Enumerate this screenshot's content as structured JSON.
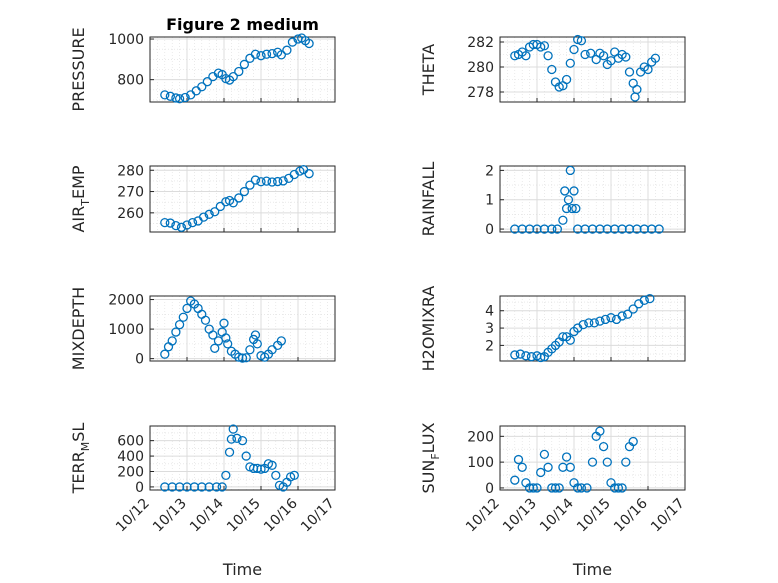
{
  "chart_data": [
    {
      "id": "pressure",
      "type": "scatter",
      "title": "Figure 2 medium",
      "ylabel": "PRESSURE",
      "xlabel": "",
      "ylim": [
        690,
        1010
      ],
      "yticks": [
        800,
        1000
      ],
      "yminor": [
        700,
        750,
        850,
        900,
        950
      ],
      "xlim": [
        0,
        5
      ],
      "xtick_labels": [],
      "grid": "on",
      "points": [
        [
          0.4,
          725
        ],
        [
          0.55,
          718
        ],
        [
          0.7,
          710
        ],
        [
          0.8,
          706
        ],
        [
          0.95,
          712
        ],
        [
          1.1,
          725
        ],
        [
          1.25,
          745
        ],
        [
          1.4,
          765
        ],
        [
          1.55,
          790
        ],
        [
          1.7,
          815
        ],
        [
          1.85,
          832
        ],
        [
          1.95,
          825
        ],
        [
          2.05,
          805
        ],
        [
          2.15,
          798
        ],
        [
          2.25,
          815
        ],
        [
          2.4,
          840
        ],
        [
          2.55,
          875
        ],
        [
          2.7,
          905
        ],
        [
          2.85,
          925
        ],
        [
          3.0,
          918
        ],
        [
          3.15,
          925
        ],
        [
          3.3,
          928
        ],
        [
          3.45,
          935
        ],
        [
          3.55,
          922
        ],
        [
          3.7,
          945
        ],
        [
          3.85,
          985
        ],
        [
          4.0,
          1000
        ],
        [
          4.1,
          1005
        ],
        [
          4.2,
          992
        ],
        [
          4.3,
          978
        ]
      ]
    },
    {
      "id": "theta",
      "type": "scatter",
      "ylabel": "THETA",
      "xlabel": "",
      "ylim": [
        277.2,
        282.4
      ],
      "yticks": [
        278,
        280,
        282
      ],
      "yminor": [
        279,
        281
      ],
      "xlim": [
        0,
        5
      ],
      "xtick_labels": [],
      "grid": "on",
      "points": [
        [
          0.4,
          280.9
        ],
        [
          0.5,
          281.0
        ],
        [
          0.6,
          281.2
        ],
        [
          0.7,
          280.9
        ],
        [
          0.8,
          281.6
        ],
        [
          0.9,
          281.8
        ],
        [
          1.0,
          281.8
        ],
        [
          1.1,
          281.6
        ],
        [
          1.2,
          281.7
        ],
        [
          1.3,
          280.9
        ],
        [
          1.4,
          279.8
        ],
        [
          1.5,
          278.8
        ],
        [
          1.6,
          278.4
        ],
        [
          1.7,
          278.5
        ],
        [
          1.8,
          279.0
        ],
        [
          1.9,
          280.3
        ],
        [
          2.0,
          281.4
        ],
        [
          2.1,
          282.2
        ],
        [
          2.2,
          282.1
        ],
        [
          2.3,
          281.0
        ],
        [
          2.45,
          281.1
        ],
        [
          2.6,
          280.6
        ],
        [
          2.7,
          281.1
        ],
        [
          2.8,
          280.9
        ],
        [
          2.9,
          280.2
        ],
        [
          3.0,
          280.5
        ],
        [
          3.1,
          281.2
        ],
        [
          3.2,
          280.7
        ],
        [
          3.3,
          281.0
        ],
        [
          3.4,
          280.8
        ],
        [
          3.5,
          279.6
        ],
        [
          3.6,
          278.7
        ],
        [
          3.65,
          277.6
        ],
        [
          3.7,
          278.2
        ],
        [
          3.8,
          279.6
        ],
        [
          3.9,
          280.0
        ],
        [
          4.0,
          279.8
        ],
        [
          4.1,
          280.4
        ],
        [
          4.2,
          280.7
        ]
      ]
    },
    {
      "id": "air-temp",
      "type": "scatter",
      "ylabel": "AIR",
      "ylabel_sub": "T",
      "ylabel_tail": "EMP",
      "xlabel": "",
      "ylim": [
        251,
        282
      ],
      "yticks": [
        260,
        270,
        280
      ],
      "yminor": [
        255,
        265,
        275
      ],
      "xlim": [
        0,
        5
      ],
      "xtick_labels": [],
      "grid": "on",
      "points": [
        [
          0.4,
          255.4
        ],
        [
          0.55,
          255.2
        ],
        [
          0.7,
          254.0
        ],
        [
          0.85,
          253.2
        ],
        [
          1.0,
          254.3
        ],
        [
          1.15,
          255.4
        ],
        [
          1.3,
          256.2
        ],
        [
          1.45,
          258.0
        ],
        [
          1.6,
          259.3
        ],
        [
          1.75,
          260.5
        ],
        [
          1.9,
          263.0
        ],
        [
          2.05,
          265.2
        ],
        [
          2.15,
          265.8
        ],
        [
          2.25,
          264.7
        ],
        [
          2.4,
          267.0
        ],
        [
          2.55,
          270.0
        ],
        [
          2.7,
          273.0
        ],
        [
          2.85,
          275.4
        ],
        [
          3.0,
          274.6
        ],
        [
          3.15,
          274.9
        ],
        [
          3.3,
          274.5
        ],
        [
          3.45,
          274.7
        ],
        [
          3.6,
          275.0
        ],
        [
          3.75,
          276.2
        ],
        [
          3.9,
          278.0
        ],
        [
          4.05,
          279.6
        ],
        [
          4.15,
          280.3
        ],
        [
          4.3,
          278.4
        ]
      ]
    },
    {
      "id": "rainfall",
      "type": "scatter",
      "ylabel": "RAINFALL",
      "xlabel": "",
      "ylim": [
        -0.1,
        2.15
      ],
      "yticks": [
        0,
        1,
        2
      ],
      "yminor": [
        0.5,
        1.5
      ],
      "xlim": [
        0,
        5
      ],
      "xtick_labels": [],
      "grid": "on",
      "points": [
        [
          0.4,
          0
        ],
        [
          0.6,
          0
        ],
        [
          0.8,
          0
        ],
        [
          1.0,
          0
        ],
        [
          1.2,
          0
        ],
        [
          1.4,
          0
        ],
        [
          1.55,
          0
        ],
        [
          1.7,
          0.3
        ],
        [
          1.75,
          1.3
        ],
        [
          1.8,
          0.7
        ],
        [
          1.85,
          1.0
        ],
        [
          1.9,
          2.0
        ],
        [
          1.95,
          0.7
        ],
        [
          2.0,
          1.3
        ],
        [
          2.05,
          0.7
        ],
        [
          2.1,
          0
        ],
        [
          2.3,
          0
        ],
        [
          2.5,
          0
        ],
        [
          2.7,
          0
        ],
        [
          2.9,
          0
        ],
        [
          3.1,
          0
        ],
        [
          3.3,
          0
        ],
        [
          3.5,
          0
        ],
        [
          3.7,
          0
        ],
        [
          3.9,
          0
        ],
        [
          4.1,
          0
        ],
        [
          4.3,
          0
        ]
      ]
    },
    {
      "id": "mixdepth",
      "type": "scatter",
      "ylabel": "MIXDEPTH",
      "xlabel": "",
      "ylim": [
        -80,
        2120
      ],
      "yticks": [
        0,
        1000,
        2000
      ],
      "yminor": [
        500,
        1500
      ],
      "xlim": [
        0,
        5
      ],
      "xtick_labels": [],
      "grid": "on",
      "points": [
        [
          0.4,
          150
        ],
        [
          0.5,
          400
        ],
        [
          0.6,
          600
        ],
        [
          0.7,
          900
        ],
        [
          0.8,
          1150
        ],
        [
          0.9,
          1400
        ],
        [
          1.0,
          1700
        ],
        [
          1.1,
          1950
        ],
        [
          1.2,
          1850
        ],
        [
          1.3,
          1700
        ],
        [
          1.4,
          1500
        ],
        [
          1.5,
          1300
        ],
        [
          1.6,
          1000
        ],
        [
          1.7,
          800
        ],
        [
          1.75,
          350
        ],
        [
          1.85,
          600
        ],
        [
          1.95,
          900
        ],
        [
          2.0,
          1200
        ],
        [
          2.05,
          700
        ],
        [
          2.1,
          500
        ],
        [
          2.2,
          250
        ],
        [
          2.3,
          150
        ],
        [
          2.4,
          50
        ],
        [
          2.5,
          20
        ],
        [
          2.6,
          30
        ],
        [
          2.7,
          300
        ],
        [
          2.8,
          650
        ],
        [
          2.85,
          800
        ],
        [
          2.9,
          500
        ],
        [
          3.0,
          100
        ],
        [
          3.1,
          50
        ],
        [
          3.2,
          150
        ],
        [
          3.3,
          300
        ],
        [
          3.45,
          450
        ],
        [
          3.55,
          600
        ]
      ]
    },
    {
      "id": "h2omixra",
      "type": "scatter",
      "ylabel": "H2OMIXRA",
      "xlabel": "",
      "ylim": [
        1.1,
        4.85
      ],
      "yticks": [
        2,
        3,
        4
      ],
      "yminor": [
        1.5,
        2.5,
        3.5,
        4.5
      ],
      "xlim": [
        0,
        5
      ],
      "xtick_labels": [],
      "grid": "on",
      "points": [
        [
          0.4,
          1.45
        ],
        [
          0.55,
          1.5
        ],
        [
          0.7,
          1.4
        ],
        [
          0.85,
          1.35
        ],
        [
          1.0,
          1.4
        ],
        [
          1.1,
          1.3
        ],
        [
          1.2,
          1.35
        ],
        [
          1.3,
          1.6
        ],
        [
          1.4,
          1.8
        ],
        [
          1.5,
          2.0
        ],
        [
          1.6,
          2.2
        ],
        [
          1.7,
          2.5
        ],
        [
          1.8,
          2.5
        ],
        [
          1.9,
          2.3
        ],
        [
          2.0,
          2.8
        ],
        [
          2.1,
          3.0
        ],
        [
          2.25,
          3.2
        ],
        [
          2.4,
          3.3
        ],
        [
          2.55,
          3.3
        ],
        [
          2.7,
          3.4
        ],
        [
          2.85,
          3.5
        ],
        [
          3.0,
          3.6
        ],
        [
          3.15,
          3.5
        ],
        [
          3.3,
          3.7
        ],
        [
          3.45,
          3.8
        ],
        [
          3.6,
          4.1
        ],
        [
          3.75,
          4.4
        ],
        [
          3.9,
          4.6
        ],
        [
          4.05,
          4.7
        ]
      ]
    },
    {
      "id": "terr-msl",
      "type": "scatter",
      "ylabel": "TERR",
      "ylabel_sub": "M",
      "ylabel_tail": "SL",
      "xlabel": "Time",
      "ylim": [
        -40,
        790
      ],
      "yticks": [
        0,
        200,
        400,
        600
      ],
      "yminor": [
        100,
        300,
        500,
        700
      ],
      "xlim": [
        0,
        5
      ],
      "xtick_labels": [
        "10/12",
        "10/13",
        "10/14",
        "10/15",
        "10/16",
        "10/17"
      ],
      "grid": "on",
      "points": [
        [
          0.4,
          0
        ],
        [
          0.6,
          0
        ],
        [
          0.8,
          0
        ],
        [
          1.0,
          0
        ],
        [
          1.2,
          0
        ],
        [
          1.4,
          0
        ],
        [
          1.6,
          0
        ],
        [
          1.8,
          0
        ],
        [
          1.95,
          0
        ],
        [
          2.05,
          150
        ],
        [
          2.15,
          450
        ],
        [
          2.2,
          620
        ],
        [
          2.25,
          750
        ],
        [
          2.35,
          630
        ],
        [
          2.5,
          600
        ],
        [
          2.6,
          400
        ],
        [
          2.7,
          260
        ],
        [
          2.8,
          240
        ],
        [
          2.9,
          240
        ],
        [
          3.0,
          230
        ],
        [
          3.1,
          240
        ],
        [
          3.2,
          300
        ],
        [
          3.3,
          280
        ],
        [
          3.4,
          150
        ],
        [
          3.5,
          20
        ],
        [
          3.6,
          0
        ],
        [
          3.7,
          60
        ],
        [
          3.8,
          130
        ],
        [
          3.9,
          150
        ]
      ]
    },
    {
      "id": "sun-flux",
      "type": "scatter",
      "ylabel": "SUN",
      "ylabel_sub": "F",
      "ylabel_tail": "LUX",
      "xlabel": "Time",
      "ylim": [
        -8,
        240
      ],
      "yticks": [
        0,
        100,
        200
      ],
      "yminor": [
        50,
        150
      ],
      "xlim": [
        0,
        5
      ],
      "xtick_labels": [
        "10/12",
        "10/13",
        "10/14",
        "10/15",
        "10/16",
        "10/17"
      ],
      "grid": "on",
      "points": [
        [
          0.4,
          30
        ],
        [
          0.5,
          110
        ],
        [
          0.6,
          80
        ],
        [
          0.7,
          20
        ],
        [
          0.8,
          0
        ],
        [
          0.9,
          0
        ],
        [
          1.0,
          0
        ],
        [
          1.1,
          60
        ],
        [
          1.2,
          130
        ],
        [
          1.3,
          80
        ],
        [
          1.4,
          0
        ],
        [
          1.5,
          0
        ],
        [
          1.6,
          0
        ],
        [
          1.7,
          80
        ],
        [
          1.8,
          120
        ],
        [
          1.9,
          80
        ],
        [
          2.0,
          20
        ],
        [
          2.1,
          0
        ],
        [
          2.2,
          0
        ],
        [
          2.35,
          0
        ],
        [
          2.5,
          100
        ],
        [
          2.6,
          200
        ],
        [
          2.7,
          220
        ],
        [
          2.8,
          160
        ],
        [
          2.9,
          100
        ],
        [
          3.0,
          20
        ],
        [
          3.1,
          0
        ],
        [
          3.2,
          0
        ],
        [
          3.3,
          0
        ],
        [
          3.4,
          100
        ],
        [
          3.5,
          160
        ],
        [
          3.6,
          180
        ]
      ]
    }
  ]
}
